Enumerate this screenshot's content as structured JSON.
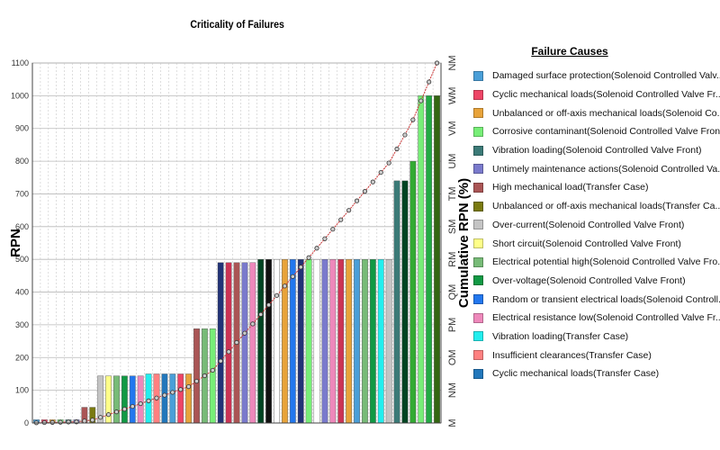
{
  "chart_data": {
    "type": "bar",
    "title": "Criticality of Failures",
    "ylabel": "RPN",
    "y2label": "Cumulative RPN (%)",
    "ylim": [
      0,
      1100
    ],
    "yticks": [
      "0",
      "100",
      "200",
      "300",
      "400",
      "500",
      "600",
      "700",
      "800",
      "900",
      "1000",
      "1100"
    ],
    "y2ticks": [
      "M",
      "NM",
      "OM",
      "PM",
      "QM",
      "RM",
      "SM",
      "TM",
      "UM",
      "VM",
      "WM",
      "NM"
    ],
    "grid": true,
    "legend": {
      "title": "Failure Causes",
      "position": "right"
    },
    "legend_items": [
      {
        "label": "Damaged surface protection(Solenoid Controlled Valv...",
        "color": "#4A9FD8"
      },
      {
        "label": "Cyclic mechanical loads(Solenoid Controlled Valve Fr...",
        "color": "#EE4466"
      },
      {
        "label": "Unbalanced or off-axis mechanical loads(Solenoid Co...",
        "color": "#E8A33A"
      },
      {
        "label": "Corrosive contaminant(Solenoid Controlled Valve Front)",
        "color": "#77EE77"
      },
      {
        "label": "Vibration loading(Solenoid Controlled Valve Front)",
        "color": "#3B7A77"
      },
      {
        "label": "Untimely maintenance actions(Solenoid Controlled Va...",
        "color": "#7A7ACC"
      },
      {
        "label": "High mechanical load(Transfer Case)",
        "color": "#AA5555"
      },
      {
        "label": "Unbalanced or off-axis mechanical loads(Transfer Ca...",
        "color": "#7A7A10"
      },
      {
        "label": "Over-current(Solenoid Controlled Valve Front)",
        "color": "#C4C4C4"
      },
      {
        "label": "Short circuit(Solenoid Controlled Valve Front)",
        "color": "#FFFF88"
      },
      {
        "label": "Electrical potential high(Solenoid Controlled Valve Fro...",
        "color": "#77BB77"
      },
      {
        "label": "Over-voltage(Solenoid Controlled Valve Front)",
        "color": "#119944"
      },
      {
        "label": "Random or transient electrical loads(Solenoid Controll...",
        "color": "#2277EE"
      },
      {
        "label": "Electrical resistance low(Solenoid Controlled Valve Fr...",
        "color": "#EE88BB"
      },
      {
        "label": "Vibration loading(Transfer Case)",
        "color": "#22EEEE"
      },
      {
        "label": "Insufficient clearances(Transfer Case)",
        "color": "#FF8080"
      },
      {
        "label": "Cyclic mechanical loads(Transfer Case)",
        "color": "#2277BB"
      }
    ],
    "bars": [
      {
        "value": 10,
        "color": "#4A9FD8"
      },
      {
        "value": 10,
        "color": "#EE4466"
      },
      {
        "value": 10,
        "color": "#E8A33A"
      },
      {
        "value": 10,
        "color": "#77EE77"
      },
      {
        "value": 10,
        "color": "#3B7A77"
      },
      {
        "value": 10,
        "color": "#7A7ACC"
      },
      {
        "value": 48,
        "color": "#AA5555"
      },
      {
        "value": 48,
        "color": "#7A7A10"
      },
      {
        "value": 144,
        "color": "#C4C4C4"
      },
      {
        "value": 144,
        "color": "#FFFF88"
      },
      {
        "value": 144,
        "color": "#77BB77"
      },
      {
        "value": 144,
        "color": "#119944"
      },
      {
        "value": 144,
        "color": "#2277EE"
      },
      {
        "value": 144,
        "color": "#EE88BB"
      },
      {
        "value": 150,
        "color": "#22EEEE"
      },
      {
        "value": 150,
        "color": "#FF8080"
      },
      {
        "value": 150,
        "color": "#2277BB"
      },
      {
        "value": 150,
        "color": "#4A9FD8"
      },
      {
        "value": 150,
        "color": "#EE4466"
      },
      {
        "value": 150,
        "color": "#E8A33A"
      },
      {
        "value": 288,
        "color": "#AA5555"
      },
      {
        "value": 288,
        "color": "#77BB77"
      },
      {
        "value": 288,
        "color": "#77EE77"
      },
      {
        "value": 490,
        "color": "#223377"
      },
      {
        "value": 490,
        "color": "#CC3355"
      },
      {
        "value": 490,
        "color": "#AA5555"
      },
      {
        "value": 490,
        "color": "#7A7ACC"
      },
      {
        "value": 490,
        "color": "#EE88BB"
      },
      {
        "value": 500,
        "color": "#004422"
      },
      {
        "value": 500,
        "color": "#111111"
      },
      {
        "value": 500,
        "color": "#FFFFFF"
      },
      {
        "value": 500,
        "color": "#E8A33A"
      },
      {
        "value": 500,
        "color": "#2277EE"
      },
      {
        "value": 500,
        "color": "#223377"
      },
      {
        "value": 500,
        "color": "#77EE77"
      },
      {
        "value": 500,
        "color": "#FFFFFF"
      },
      {
        "value": 500,
        "color": "#7A7ACC"
      },
      {
        "value": 500,
        "color": "#EE88BB"
      },
      {
        "value": 500,
        "color": "#CC3355"
      },
      {
        "value": 500,
        "color": "#E8A33A"
      },
      {
        "value": 500,
        "color": "#4A9FD8"
      },
      {
        "value": 500,
        "color": "#77BB77"
      },
      {
        "value": 500,
        "color": "#119944"
      },
      {
        "value": 500,
        "color": "#22EEEE"
      },
      {
        "value": 500,
        "color": "#C4C4C4"
      },
      {
        "value": 740,
        "color": "#3B7A77"
      },
      {
        "value": 740,
        "color": "#004422"
      },
      {
        "value": 800,
        "color": "#33AA33"
      },
      {
        "value": 1000,
        "color": "#77EE77"
      },
      {
        "value": 1000,
        "color": "#22AA44"
      },
      {
        "value": 1000,
        "color": "#336611"
      }
    ],
    "cumulative_line": {
      "color": "#CC3333",
      "marker": "circle"
    }
  }
}
